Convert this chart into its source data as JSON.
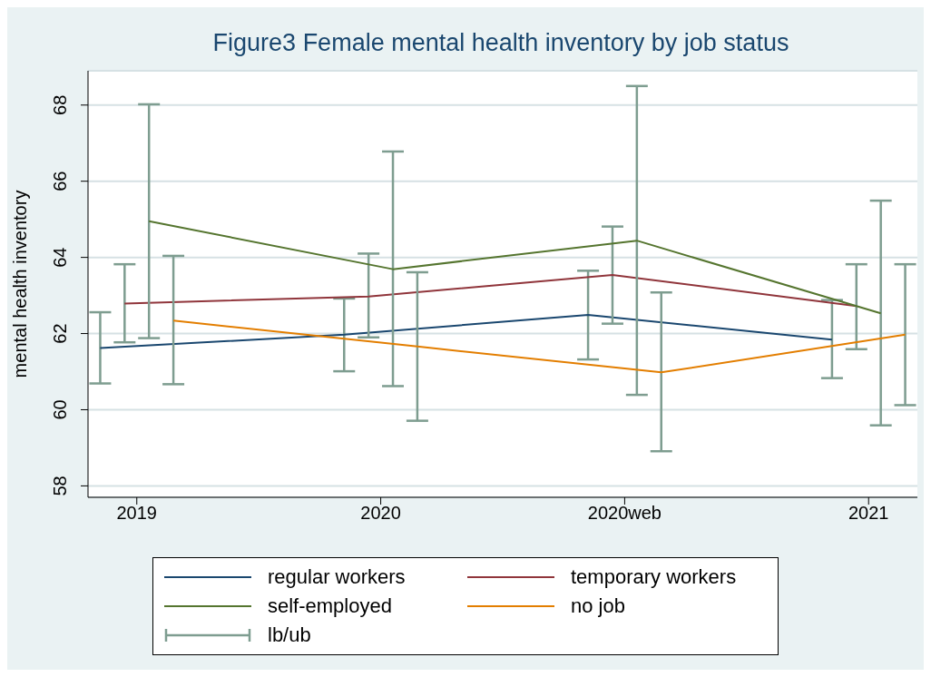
{
  "chart_data": {
    "type": "line",
    "title": "Figure3 Female mental health inventory by job status",
    "ylabel": "mental health inventory",
    "categories": [
      "2019",
      "2020",
      "2020web",
      "2021"
    ],
    "ylim": [
      57.7,
      68.9
    ],
    "yticks": [
      58,
      60,
      62,
      64,
      66,
      68
    ],
    "grid": "y",
    "legend": "bottom",
    "marker": "none",
    "line_style": "solid",
    "annotations": [
      "lb/ub"
    ],
    "series": [
      {
        "name": "regular workers",
        "color": "#1a476f",
        "values": [
          61.62,
          61.97,
          62.49,
          61.84
        ],
        "errors": [
          [
            60.69,
            62.56
          ],
          [
            61.01,
            62.92
          ],
          [
            61.32,
            63.65
          ],
          [
            60.83,
            62.88
          ]
        ]
      },
      {
        "name": "temporary workers",
        "color": "#90353b",
        "values": [
          62.79,
          62.97,
          63.54,
          62.72
        ],
        "errors": [
          [
            61.77,
            63.82
          ],
          [
            61.9,
            64.1
          ],
          [
            62.26,
            64.81
          ],
          [
            61.59,
            63.82
          ]
        ]
      },
      {
        "name": "self-employed",
        "color": "#55752f",
        "values": [
          64.95,
          63.69,
          64.44,
          62.53
        ],
        "errors": [
          [
            61.88,
            68.02
          ],
          [
            60.62,
            66.78
          ],
          [
            60.39,
            68.5
          ],
          [
            59.59,
            65.49
          ]
        ]
      },
      {
        "name": "no job",
        "color": "#e37e00",
        "values": [
          62.34,
          61.66,
          60.98,
          61.97
        ],
        "errors": [
          [
            60.67,
            64.04
          ],
          [
            59.71,
            63.61
          ],
          [
            58.91,
            63.08
          ],
          [
            60.12,
            63.82
          ]
        ]
      }
    ]
  }
}
